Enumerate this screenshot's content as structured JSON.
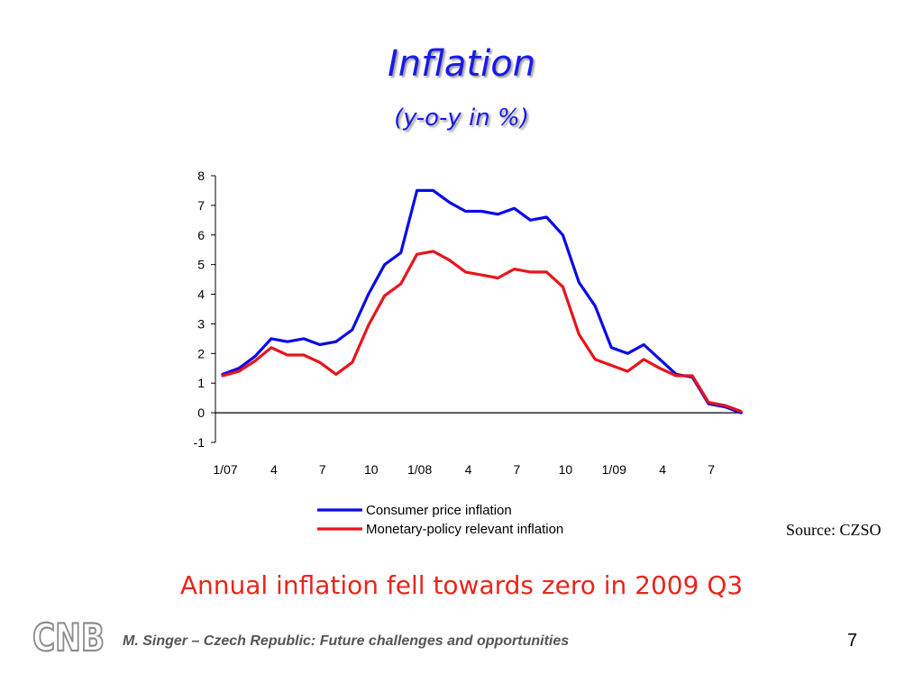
{
  "slide": {
    "title": "Inflation",
    "subtitle": "(y-o-y in %)",
    "source": "Source: CZSO",
    "headline": "Annual inflation fell towards zero in 2009 Q3",
    "footer": "M. Singer – Czech Republic: Future challenges and opportunities",
    "page_number": "7",
    "logo_text": "CNB"
  },
  "colors": {
    "title": "#1a1ae6",
    "headline": "#e8251c",
    "cpi": "#0a0ae8",
    "mpri": "#e8141c"
  },
  "chart_data": {
    "type": "line",
    "x_tick_labels": [
      "1/07",
      "4",
      "7",
      "10",
      "1/08",
      "4",
      "7",
      "10",
      "1/09",
      "4",
      "7"
    ],
    "x": [
      "2007-01",
      "2007-02",
      "2007-03",
      "2007-04",
      "2007-05",
      "2007-06",
      "2007-07",
      "2007-08",
      "2007-09",
      "2007-10",
      "2007-11",
      "2007-12",
      "2008-01",
      "2008-02",
      "2008-03",
      "2008-04",
      "2008-05",
      "2008-06",
      "2008-07",
      "2008-08",
      "2008-09",
      "2008-10",
      "2008-11",
      "2008-12",
      "2009-01",
      "2009-02",
      "2009-03",
      "2009-04",
      "2009-05",
      "2009-06",
      "2009-07",
      "2009-08",
      "2009-09"
    ],
    "ylim": [
      -1,
      8
    ],
    "y_ticks": [
      -1,
      0,
      1,
      2,
      3,
      4,
      5,
      6,
      7,
      8
    ],
    "legend_position": "bottom",
    "series": [
      {
        "name": "Consumer price inflation",
        "color": "#0a0ae8",
        "values": [
          1.3,
          1.5,
          1.9,
          2.5,
          2.4,
          2.5,
          2.3,
          2.4,
          2.8,
          4.0,
          5.0,
          5.4,
          7.5,
          7.5,
          7.1,
          6.8,
          6.8,
          6.7,
          6.9,
          6.5,
          6.6,
          6.0,
          4.4,
          3.6,
          2.2,
          2.0,
          2.3,
          1.8,
          1.3,
          1.2,
          0.3,
          0.2,
          0.0
        ]
      },
      {
        "name": "Monetary-policy relevant inflation",
        "color": "#e8141c",
        "values": [
          1.25,
          1.4,
          1.75,
          2.2,
          1.95,
          1.95,
          1.7,
          1.3,
          1.7,
          2.95,
          3.95,
          4.35,
          5.35,
          5.45,
          5.15,
          4.75,
          4.65,
          4.55,
          4.85,
          4.75,
          4.75,
          4.25,
          2.65,
          1.8,
          1.6,
          1.4,
          1.8,
          1.5,
          1.25,
          1.25,
          0.35,
          0.25,
          0.05
        ]
      }
    ]
  }
}
